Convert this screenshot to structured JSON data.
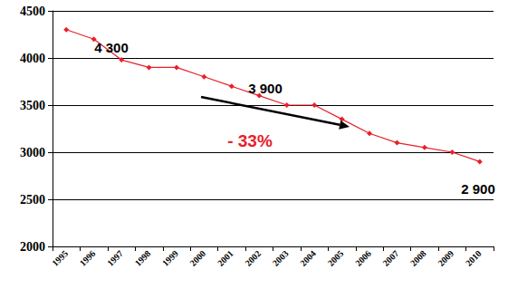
{
  "chart_data": {
    "type": "line",
    "categories": [
      "1995",
      "1996",
      "1997",
      "1998",
      "1999",
      "2000",
      "2001",
      "2002",
      "2003",
      "2004",
      "2005",
      "2006",
      "2007",
      "2008",
      "2009",
      "2010"
    ],
    "values": [
      4300,
      4200,
      3980,
      3900,
      3900,
      3800,
      3700,
      3600,
      3500,
      3500,
      3350,
      3200,
      3100,
      3050,
      3000,
      2900
    ],
    "color": "#e8202a",
    "marker": "diamond",
    "line_style": "solid",
    "ylim": [
      2000,
      4500
    ],
    "yticks": [
      2000,
      2500,
      3000,
      3500,
      4000,
      4500
    ],
    "grid": true,
    "annotations": [
      "4 300",
      "3 900",
      "- 33%",
      "2 900"
    ]
  }
}
